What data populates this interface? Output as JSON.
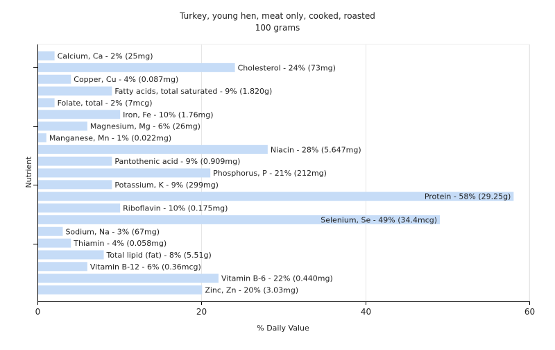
{
  "chart_data": {
    "type": "bar",
    "orientation": "horizontal",
    "title": "Turkey, young hen, meat only, cooked, roasted",
    "subtitle": "100 grams",
    "xlabel": "% Daily Value",
    "ylabel": "Nutrient",
    "xlim": [
      0,
      60
    ],
    "xticks": [
      0,
      20,
      40,
      60
    ],
    "grid": true,
    "bar_color": "#c6dcf7",
    "categories": [
      "Calcium, Ca",
      "Cholesterol",
      "Copper, Cu",
      "Fatty acids, total saturated",
      "Folate, total",
      "Iron, Fe",
      "Magnesium, Mg",
      "Manganese, Mn",
      "Niacin",
      "Pantothenic acid",
      "Phosphorus, P",
      "Potassium, K",
      "Protein",
      "Riboflavin",
      "Selenium, Se",
      "Sodium, Na",
      "Thiamin",
      "Total lipid (fat)",
      "Vitamin B-12",
      "Vitamin B-6",
      "Zinc, Zn"
    ],
    "values": [
      2,
      24,
      4,
      9,
      2,
      10,
      6,
      1,
      28,
      9,
      21,
      9,
      58,
      10,
      49,
      3,
      4,
      8,
      6,
      22,
      20
    ],
    "labels": [
      "Calcium, Ca - 2% (25mg)",
      "Cholesterol - 24% (73mg)",
      "Copper, Cu - 4% (0.087mg)",
      "Fatty acids, total saturated - 9% (1.820g)",
      "Folate, total - 2% (7mcg)",
      "Iron, Fe - 10% (1.76mg)",
      "Magnesium, Mg - 6% (26mg)",
      "Manganese, Mn - 1% (0.022mg)",
      "Niacin - 28% (5.647mg)",
      "Pantothenic acid - 9% (0.909mg)",
      "Phosphorus, P - 21% (212mg)",
      "Potassium, K - 9% (299mg)",
      "Protein - 58% (29.25g)",
      "Riboflavin - 10% (0.175mg)",
      "Selenium, Se - 49% (34.4mcg)",
      "Sodium, Na - 3% (67mg)",
      "Thiamin - 4% (0.058mg)",
      "Total lipid (fat) - 8% (5.51g)",
      "Vitamin B-12 - 6% (0.36mcg)",
      "Vitamin B-6 - 22% (0.440mg)",
      "Zinc, Zn - 20% (3.03mg)"
    ]
  }
}
